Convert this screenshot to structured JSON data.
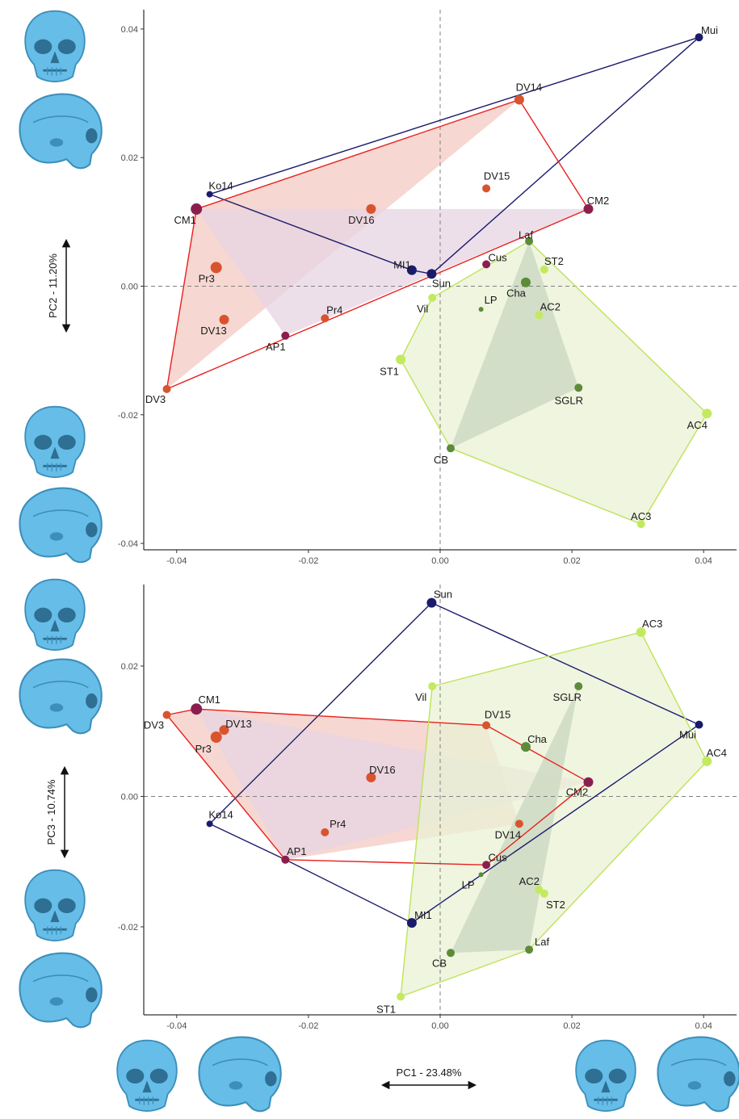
{
  "colors": {
    "group_red": "#e8201e",
    "group_navy": "#1b1b6b",
    "group_green": "#bde35a",
    "hull_red_fill": "#f4c9c2",
    "hull_purple_fill": "#e7d4e2",
    "hull_green_fill": "#e9f2d4",
    "hull_darkgreen_fill": "#c9d5c0",
    "pt_orange": "#d9542e",
    "pt_purple": "#8a1f4e",
    "pt_navy": "#1b1b6b",
    "pt_lime": "#c3ea5e",
    "pt_olive": "#5d8b3a",
    "skull": "#66bde8"
  },
  "icons": [
    "skull-frontal-view",
    "skull-lateral-view"
  ],
  "axes": {
    "x_title": "PC1 - 23.48%",
    "top_y_title": "PC2 - 11.20%",
    "bottom_y_title": "PC3 - 10.74%"
  },
  "chart_data": [
    {
      "type": "scatter",
      "title": "",
      "xlabel": "PC1 - 23.48%",
      "ylabel": "PC2 - 11.20%",
      "xlim": [
        -0.045,
        0.045
      ],
      "ylim": [
        -0.041,
        0.043
      ],
      "xticks": [
        "-0.04",
        "-0.02",
        "0.00",
        "0.02",
        "0.04"
      ],
      "yticks": [
        "-0.04",
        "-0.02",
        "0.00",
        "0.02",
        "0.04"
      ],
      "xtick_values": [
        -0.04,
        -0.02,
        0.0,
        0.02,
        0.04
      ],
      "ytick_values": [
        -0.04,
        -0.02,
        0.0,
        0.02,
        0.04
      ],
      "reference_lines": {
        "x": 0,
        "y": 0
      },
      "points": [
        {
          "label": "Mui",
          "x": 0.0393,
          "y": 0.0387,
          "color": "navy",
          "size": 5
        },
        {
          "label": "DV14",
          "x": 0.012,
          "y": 0.029,
          "color": "orange",
          "size": 6
        },
        {
          "label": "DV15",
          "x": 0.007,
          "y": 0.0152,
          "color": "orange",
          "size": 5
        },
        {
          "label": "CM2",
          "x": 0.0225,
          "y": 0.012,
          "color": "purple",
          "size": 6
        },
        {
          "label": "Ko14",
          "x": -0.035,
          "y": 0.0143,
          "color": "navy",
          "size": 4
        },
        {
          "label": "CM1",
          "x": -0.037,
          "y": 0.012,
          "color": "purple",
          "size": 7
        },
        {
          "label": "DV16",
          "x": -0.0105,
          "y": 0.012,
          "color": "orange",
          "size": 6
        },
        {
          "label": "Pr3",
          "x": -0.034,
          "y": 0.0029,
          "color": "orange",
          "size": 7
        },
        {
          "label": "MI1",
          "x": -0.0043,
          "y": 0.0025,
          "color": "navy",
          "size": 6
        },
        {
          "label": "Sun",
          "x": -0.0013,
          "y": 0.0019,
          "color": "navy",
          "size": 6
        },
        {
          "label": "Cus",
          "x": 0.007,
          "y": 0.0034,
          "color": "purple",
          "size": 5
        },
        {
          "label": "Laf",
          "x": 0.0135,
          "y": 0.007,
          "color": "olive",
          "size": 5
        },
        {
          "label": "ST2",
          "x": 0.0158,
          "y": 0.0026,
          "color": "lime",
          "size": 5
        },
        {
          "label": "Cha",
          "x": 0.013,
          "y": 0.0006,
          "color": "olive",
          "size": 6
        },
        {
          "label": "Vil",
          "x": -0.0012,
          "y": -0.0018,
          "color": "lime",
          "size": 5
        },
        {
          "label": "LP",
          "x": 0.0062,
          "y": -0.0036,
          "color": "olive",
          "size": 3
        },
        {
          "label": "AC2",
          "x": 0.015,
          "y": -0.0045,
          "color": "lime",
          "size": 5
        },
        {
          "label": "DV13",
          "x": -0.0328,
          "y": -0.0052,
          "color": "orange",
          "size": 6
        },
        {
          "label": "Pr4",
          "x": -0.0175,
          "y": -0.005,
          "color": "orange",
          "size": 5
        },
        {
          "label": "AP1",
          "x": -0.0235,
          "y": -0.0077,
          "color": "purple",
          "size": 5
        },
        {
          "label": "ST1",
          "x": -0.006,
          "y": -0.0114,
          "color": "lime",
          "size": 6
        },
        {
          "label": "DV3",
          "x": -0.0415,
          "y": -0.016,
          "color": "orange",
          "size": 5
        },
        {
          "label": "SGLR",
          "x": 0.021,
          "y": -0.0158,
          "color": "olive",
          "size": 5
        },
        {
          "label": "AC4",
          "x": 0.0405,
          "y": -0.0198,
          "color": "lime",
          "size": 6
        },
        {
          "label": "CB",
          "x": 0.0016,
          "y": -0.0252,
          "color": "olive",
          "size": 5
        },
        {
          "label": "AC3",
          "x": 0.0305,
          "y": -0.037,
          "color": "lime",
          "size": 5
        }
      ],
      "hulls": [
        {
          "stroke": "navy",
          "points": [
            "Ko14",
            "Mui",
            "Sun",
            "MI1"
          ]
        },
        {
          "stroke": "red",
          "points": [
            "CM1",
            "DV14",
            "CM2",
            "DV3"
          ]
        },
        {
          "stroke": "green",
          "points": [
            "Laf",
            "AC4",
            "AC3",
            "CB",
            "ST1",
            "Vil"
          ]
        }
      ],
      "fills": [
        {
          "fill": "red",
          "points": [
            "DV14",
            "DV3",
            "CM1"
          ]
        },
        {
          "fill": "purple",
          "points": [
            "CM1",
            "CM2",
            "AP1"
          ]
        },
        {
          "fill": "green",
          "points": [
            "Laf",
            "AC4",
            "AC3",
            "CB",
            "ST1",
            "Vil"
          ]
        },
        {
          "fill": "darkgreen",
          "points": [
            "Laf",
            "SGLR",
            "CB"
          ]
        }
      ]
    },
    {
      "type": "scatter",
      "title": "",
      "xlabel": "PC1 - 23.48%",
      "ylabel": "PC3 - 10.74%",
      "xlim": [
        -0.045,
        0.045
      ],
      "ylim": [
        -0.0335,
        0.0325
      ],
      "xticks": [
        "-0.04",
        "-0.02",
        "0.00",
        "0.02",
        "0.04"
      ],
      "yticks": [
        "-0.02",
        "0.00",
        "0.02"
      ],
      "xtick_values": [
        -0.04,
        -0.02,
        0.0,
        0.02,
        0.04
      ],
      "ytick_values": [
        -0.02,
        0.0,
        0.02
      ],
      "reference_lines": {
        "x": 0,
        "y": 0
      },
      "points": [
        {
          "label": "Sun",
          "x": -0.0013,
          "y": 0.0297,
          "color": "navy",
          "size": 6
        },
        {
          "label": "AC3",
          "x": 0.0305,
          "y": 0.0252,
          "color": "lime",
          "size": 6
        },
        {
          "label": "Vil",
          "x": -0.0012,
          "y": 0.0169,
          "color": "lime",
          "size": 5
        },
        {
          "label": "SGLR",
          "x": 0.021,
          "y": 0.0169,
          "color": "olive",
          "size": 5
        },
        {
          "label": "CM1",
          "x": -0.037,
          "y": 0.0134,
          "color": "purple",
          "size": 7
        },
        {
          "label": "DV3",
          "x": -0.0415,
          "y": 0.0125,
          "color": "orange",
          "size": 5
        },
        {
          "label": "DV13",
          "x": -0.0328,
          "y": 0.0102,
          "color": "orange",
          "size": 6
        },
        {
          "label": "Pr3",
          "x": -0.034,
          "y": 0.0091,
          "color": "orange",
          "size": 7
        },
        {
          "label": "DV15",
          "x": 0.007,
          "y": 0.0109,
          "color": "orange",
          "size": 5
        },
        {
          "label": "Mui",
          "x": 0.0393,
          "y": 0.011,
          "color": "navy",
          "size": 5
        },
        {
          "label": "Cha",
          "x": 0.013,
          "y": 0.0076,
          "color": "olive",
          "size": 6
        },
        {
          "label": "AC4",
          "x": 0.0405,
          "y": 0.0054,
          "color": "lime",
          "size": 6
        },
        {
          "label": "DV16",
          "x": -0.0105,
          "y": 0.0029,
          "color": "orange",
          "size": 6
        },
        {
          "label": "CM2",
          "x": 0.0225,
          "y": 0.0022,
          "color": "purple",
          "size": 6
        },
        {
          "label": "Ko14",
          "x": -0.035,
          "y": -0.0042,
          "color": "navy",
          "size": 4
        },
        {
          "label": "Pr4",
          "x": -0.0175,
          "y": -0.0055,
          "color": "orange",
          "size": 5
        },
        {
          "label": "DV14",
          "x": 0.012,
          "y": -0.0042,
          "color": "orange",
          "size": 5
        },
        {
          "label": "AP1",
          "x": -0.0235,
          "y": -0.0097,
          "color": "purple",
          "size": 5
        },
        {
          "label": "Cus",
          "x": 0.007,
          "y": -0.0105,
          "color": "purple",
          "size": 5
        },
        {
          "label": "LP",
          "x": 0.0062,
          "y": -0.012,
          "color": "olive",
          "size": 3
        },
        {
          "label": "AC2",
          "x": 0.015,
          "y": -0.0143,
          "color": "lime",
          "size": 5
        },
        {
          "label": "ST2",
          "x": 0.0158,
          "y": -0.0149,
          "color": "lime",
          "size": 5
        },
        {
          "label": "MI1",
          "x": -0.0043,
          "y": -0.0194,
          "color": "navy",
          "size": 6
        },
        {
          "label": "CB",
          "x": 0.0016,
          "y": -0.024,
          "color": "olive",
          "size": 5
        },
        {
          "label": "Laf",
          "x": 0.0135,
          "y": -0.0235,
          "color": "olive",
          "size": 5
        },
        {
          "label": "ST1",
          "x": -0.006,
          "y": -0.0307,
          "color": "lime",
          "size": 5
        }
      ],
      "hulls": [
        {
          "stroke": "navy",
          "points": [
            "Sun",
            "Mui",
            "MI1",
            "AP1",
            "Ko14"
          ]
        },
        {
          "stroke": "red",
          "points": [
            "DV3",
            "CM1",
            "DV15",
            "CM2",
            "Cus",
            "AP1"
          ]
        },
        {
          "stroke": "green",
          "points": [
            "Vil",
            "AC3",
            "AC4",
            "Laf",
            "ST1"
          ]
        }
      ],
      "fills": [
        {
          "fill": "red",
          "points": [
            "DV3",
            "CM1",
            "DV15",
            "DV14",
            "AP1"
          ]
        },
        {
          "fill": "purple",
          "points": [
            "CM1",
            "CM2",
            "AP1"
          ]
        },
        {
          "fill": "green",
          "points": [
            "Vil",
            "AC3",
            "AC4",
            "Laf",
            "ST1"
          ]
        },
        {
          "fill": "darkgreen",
          "points": [
            "SGLR",
            "Laf",
            "CB"
          ]
        }
      ]
    }
  ]
}
